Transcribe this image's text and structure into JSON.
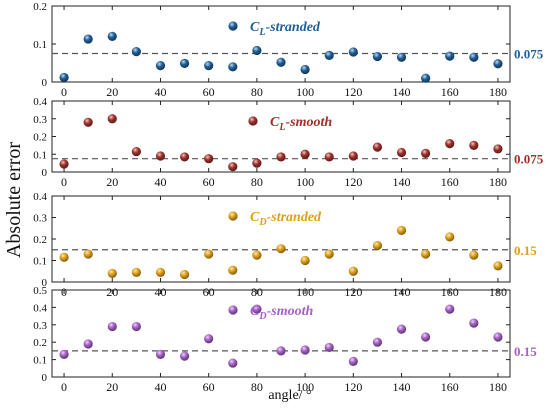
{
  "figure": {
    "ylabel": "Absolute error",
    "xlabel": "angle/ °",
    "x_ticks": [
      0,
      20,
      40,
      60,
      80,
      100,
      120,
      140,
      160,
      180
    ]
  },
  "chart_data": [
    {
      "type": "scatter",
      "legend": "C_L-stranded",
      "legend_main": "C",
      "legend_sub": "L",
      "legend_rest": "-stranded",
      "color": "#1f5f99",
      "reference_line": 0.075,
      "reference_label": "0.075",
      "ylim": [
        0,
        0.2
      ],
      "y_ticks": [
        0,
        0.1,
        0.2
      ],
      "y_tick_labels": [
        "0",
        "0.1",
        "0.2"
      ],
      "x": [
        0,
        10,
        20,
        30,
        40,
        50,
        60,
        70,
        80,
        90,
        100,
        110,
        120,
        130,
        140,
        150,
        160,
        170,
        180
      ],
      "y": [
        0.012,
        0.113,
        0.12,
        0.08,
        0.043,
        0.049,
        0.043,
        0.04,
        0.083,
        0.052,
        0.033,
        0.07,
        0.079,
        0.067,
        0.065,
        0.01,
        0.068,
        0.065,
        0.048
      ]
    },
    {
      "type": "scatter",
      "legend": "C_L-smooth",
      "legend_main": "C",
      "legend_sub": "L",
      "legend_rest": "-smooth",
      "color": "#a0302a",
      "reference_line": 0.075,
      "reference_label": "0.075",
      "ylim": [
        0,
        0.4
      ],
      "y_ticks": [
        0,
        0.1,
        0.2,
        0.3,
        0.4
      ],
      "y_tick_labels": [
        "0",
        "0.1",
        "0.2",
        "0.3",
        "0.4"
      ],
      "x": [
        0,
        10,
        20,
        30,
        40,
        50,
        60,
        70,
        80,
        90,
        100,
        110,
        120,
        130,
        140,
        150,
        160,
        170,
        180
      ],
      "y": [
        0.045,
        0.28,
        0.3,
        0.115,
        0.09,
        0.085,
        0.075,
        0.03,
        0.05,
        0.085,
        0.1,
        0.085,
        0.09,
        0.14,
        0.11,
        0.105,
        0.16,
        0.15,
        0.13
      ]
    },
    {
      "type": "scatter",
      "legend": "C_D-stranded",
      "legend_main": "C",
      "legend_sub": "D",
      "legend_rest": "-stranded",
      "color": "#e0a018",
      "reference_line": 0.15,
      "reference_label": "0.15",
      "ylim": [
        0,
        0.4
      ],
      "y_ticks": [
        0,
        0.1,
        0.2,
        0.3,
        0.4
      ],
      "y_tick_labels": [
        "0",
        "0.1",
        "0.2",
        "0.3",
        "0.4"
      ],
      "x": [
        0,
        10,
        20,
        30,
        40,
        50,
        60,
        70,
        80,
        90,
        100,
        110,
        120,
        130,
        140,
        150,
        160,
        170,
        180
      ],
      "y": [
        0.115,
        0.13,
        0.04,
        0.045,
        0.045,
        0.035,
        0.13,
        0.055,
        0.125,
        0.155,
        0.1,
        0.13,
        0.05,
        0.17,
        0.24,
        0.13,
        0.21,
        0.125,
        0.075
      ]
    },
    {
      "type": "scatter",
      "legend": "C_D-smooth",
      "legend_main": "C",
      "legend_sub": "D",
      "legend_rest": "-smooth",
      "color": "#a65fc8",
      "reference_line": 0.15,
      "reference_label": "0.15",
      "ylim": [
        0,
        0.5
      ],
      "y_ticks": [
        0,
        0.1,
        0.2,
        0.3,
        0.4,
        0.5
      ],
      "y_tick_labels": [
        "0",
        "0.1",
        "0.2",
        "0.3",
        "0.4",
        "0.5"
      ],
      "x": [
        0,
        10,
        20,
        30,
        40,
        50,
        60,
        70,
        80,
        90,
        100,
        110,
        120,
        130,
        140,
        150,
        160,
        170,
        180
      ],
      "y": [
        0.13,
        0.19,
        0.29,
        0.29,
        0.13,
        0.12,
        0.22,
        0.08,
        0.39,
        0.15,
        0.155,
        0.17,
        0.09,
        0.2,
        0.275,
        0.23,
        0.39,
        0.31,
        0.23
      ]
    }
  ]
}
